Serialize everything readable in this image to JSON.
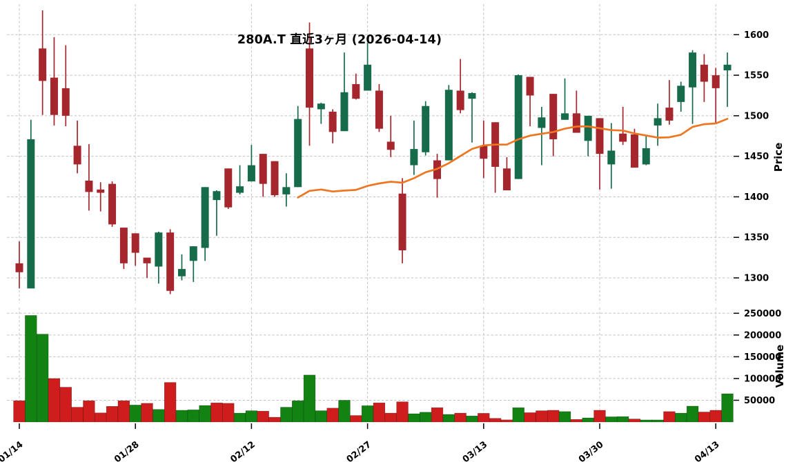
{
  "title": "280A.T 直近3ヶ月 (2026-04-14)",
  "price_axis": {
    "label": "Price",
    "ticks": [
      1300,
      1350,
      1400,
      1450,
      1500,
      1550,
      1600
    ],
    "range": [
      1272,
      1636
    ]
  },
  "volume_axis": {
    "label": "Volume",
    "ticks": [
      50000,
      100000,
      150000,
      200000,
      250000
    ],
    "range": [
      0,
      258000
    ]
  },
  "x_axis": {
    "tick_labels": [
      "01/14",
      "01/28",
      "02/12",
      "02/27",
      "03/13",
      "03/30",
      "04/13"
    ],
    "tick_day_indices": [
      0,
      10,
      20,
      30,
      40,
      50,
      60
    ]
  },
  "colors": {
    "candle_up": "#166b4a",
    "candle_down": "#a5262c",
    "volume_up": "#128212",
    "volume_down": "#cf1d1d",
    "ma_line": "#ee7620",
    "grid": "#c3c3c3",
    "text": "#000000",
    "background": "#ffffff"
  },
  "chart_data": {
    "type": "candlestick",
    "symbol": "280A.T",
    "period_label": "直近3ヶ月",
    "as_of_date": "2026-04-14",
    "legend": "none",
    "grid": true,
    "moving_average": {
      "period": 25,
      "color_ref": "ma_line"
    },
    "volume_color_rule": "close_vs_previous_close",
    "columns": [
      "date",
      "open",
      "high",
      "low",
      "close",
      "volume"
    ],
    "days": [
      [
        "01/14",
        1318,
        1345,
        1287,
        1307,
        49000
      ],
      [
        "01/15",
        1287,
        1495,
        1287,
        1471,
        245000
      ],
      [
        "01/16",
        1583,
        1630,
        1501,
        1543,
        202000
      ],
      [
        "01/19",
        1547,
        1597,
        1488,
        1501,
        100000
      ],
      [
        "01/20",
        1534,
        1587,
        1487,
        1500,
        80000
      ],
      [
        "01/21",
        1463,
        1494,
        1429,
        1440,
        34000
      ],
      [
        "01/22",
        1420,
        1465,
        1383,
        1406,
        49000
      ],
      [
        "01/23",
        1409,
        1418,
        1382,
        1405,
        21000
      ],
      [
        "01/26",
        1416,
        1419,
        1363,
        1366,
        36000
      ],
      [
        "01/27",
        1362,
        1362,
        1311,
        1318,
        49000
      ],
      [
        "01/28",
        1355,
        1355,
        1315,
        1331,
        39000
      ],
      [
        "01/29",
        1325,
        1325,
        1300,
        1318,
        43000
      ],
      [
        "01/30",
        1314,
        1357,
        1293,
        1356,
        29000
      ],
      [
        "02/02",
        1356,
        1360,
        1280,
        1284,
        91000
      ],
      [
        "02/03",
        1302,
        1329,
        1297,
        1311,
        27000
      ],
      [
        "02/04",
        1321,
        1339,
        1295,
        1339,
        28000
      ],
      [
        "02/05",
        1337,
        1412,
        1321,
        1412,
        38000
      ],
      [
        "02/06",
        1396,
        1408,
        1352,
        1407,
        44000
      ],
      [
        "02/09",
        1435,
        1435,
        1385,
        1387,
        43000
      ],
      [
        "02/10",
        1405,
        1439,
        1403,
        1413,
        20500
      ],
      [
        "02/12",
        1419,
        1464,
        1419,
        1439,
        26000
      ],
      [
        "02/13",
        1453,
        1453,
        1400,
        1416,
        25000
      ],
      [
        "02/16",
        1444,
        1444,
        1400,
        1402,
        11000
      ],
      [
        "02/17",
        1403,
        1429,
        1388,
        1412,
        34000
      ],
      [
        "02/18",
        1412,
        1512,
        1412,
        1496,
        49000
      ],
      [
        "02/19",
        1583,
        1615,
        1463,
        1510,
        108000
      ],
      [
        "02/20",
        1508,
        1516,
        1490,
        1515,
        26000
      ],
      [
        "02/24",
        1505,
        1508,
        1466,
        1480,
        32000
      ],
      [
        "02/25",
        1481,
        1578,
        1481,
        1529,
        50000
      ],
      [
        "02/26",
        1539,
        1552,
        1520,
        1521,
        15000
      ],
      [
        "02/27",
        1531,
        1590,
        1531,
        1563,
        37500
      ],
      [
        "03/02",
        1531,
        1539,
        1480,
        1484,
        44000
      ],
      [
        "03/03",
        1468,
        1500,
        1449,
        1458,
        20500
      ],
      [
        "03/04",
        1404,
        1423,
        1318,
        1334,
        46500
      ],
      [
        "03/05",
        1439,
        1494,
        1427,
        1459,
        19000
      ],
      [
        "03/06",
        1455,
        1518,
        1451,
        1512,
        22500
      ],
      [
        "03/09",
        1445,
        1453,
        1399,
        1422,
        33000
      ],
      [
        "03/10",
        1445,
        1538,
        1445,
        1532,
        17500
      ],
      [
        "03/11",
        1531,
        1570,
        1503,
        1507,
        20500
      ],
      [
        "03/12",
        1521,
        1529,
        1467,
        1528,
        14000
      ],
      [
        "03/13",
        1463,
        1494,
        1423,
        1447,
        20000
      ],
      [
        "03/16",
        1492,
        1492,
        1405,
        1437,
        8500
      ],
      [
        "03/17",
        1435,
        1449,
        1408,
        1408,
        5000
      ],
      [
        "03/18",
        1422,
        1551,
        1422,
        1550,
        33000
      ],
      [
        "03/19",
        1548,
        1548,
        1487,
        1525,
        21500
      ],
      [
        "03/23",
        1485,
        1511,
        1439,
        1498,
        26000
      ],
      [
        "03/24",
        1527,
        1527,
        1450,
        1471,
        27000
      ],
      [
        "03/25",
        1495,
        1546,
        1495,
        1503,
        24000
      ],
      [
        "03/26",
        1503,
        1531,
        1479,
        1479,
        6000
      ],
      [
        "03/27",
        1469,
        1500,
        1450,
        1500,
        9500
      ],
      [
        "03/30",
        1497,
        1497,
        1409,
        1453,
        27000
      ],
      [
        "03/31",
        1440,
        1491,
        1410,
        1457,
        12000
      ],
      [
        "04/01",
        1478,
        1511,
        1464,
        1468,
        12500
      ],
      [
        "04/02",
        1477,
        1484,
        1436,
        1436,
        7000
      ],
      [
        "04/03",
        1440,
        1476,
        1439,
        1460,
        4800
      ],
      [
        "04/06",
        1488,
        1515,
        1463,
        1497,
        4800
      ],
      [
        "04/07",
        1510,
        1544,
        1489,
        1494,
        24000
      ],
      [
        "04/08",
        1517,
        1542,
        1505,
        1537,
        20500
      ],
      [
        "04/09",
        1535,
        1581,
        1490,
        1578,
        36500
      ],
      [
        "04/10",
        1563,
        1576,
        1517,
        1542,
        23000
      ],
      [
        "04/13",
        1550,
        1559,
        1490,
        1534,
        27000
      ],
      [
        "04/14",
        1556,
        1578,
        1511,
        1563,
        65000
      ]
    ]
  }
}
